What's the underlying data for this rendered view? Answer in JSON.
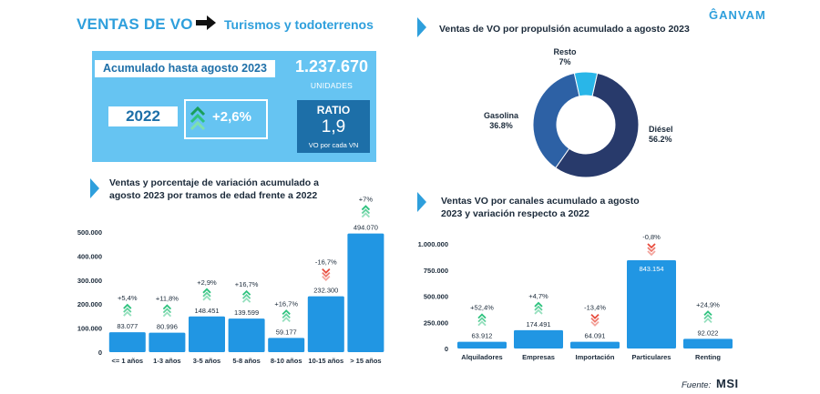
{
  "header": {
    "title": "VENTAS DE VO",
    "subtitle": "Turismos y todoterrenos",
    "logo": "ĜANVAM"
  },
  "kpis": {
    "accumulated_label": "Acumulado hasta agosto 2023",
    "units_value": "1.237.670",
    "units_label": "UNIDADES",
    "compare_year": "2022",
    "variation": "+2,6%",
    "ratio_title": "RATIO",
    "ratio_value": "1,9",
    "ratio_subtitle": "VO por cada VN"
  },
  "colors": {
    "accent": "#2e9fdc",
    "kpi_panel": "#66c4f2",
    "ratio_box": "#1d6fa8",
    "bar": "#2196e3",
    "donut_diesel": "#283a6b",
    "donut_gasolina": "#2d61a5",
    "donut_resto": "#29b6e8",
    "arrow_up": "#2ec27e",
    "arrow_down": "#e84c3d"
  },
  "chart_data": [
    {
      "type": "pie",
      "title": "Ventas de VO por propulsión acumulado a agosto 2023",
      "slices": [
        {
          "label": "Diésel",
          "value": 56.2,
          "display": "56.2%"
        },
        {
          "label": "Gasolina",
          "value": 36.8,
          "display": "36.8%"
        },
        {
          "label": "Resto",
          "value": 7,
          "display": "7%"
        }
      ]
    },
    {
      "type": "bar",
      "title": "Ventas y porcentaje de variación acumulado a agosto 2023 por tramos de edad frente a 2022",
      "categories": [
        "<= 1 años",
        "1-3 años",
        "3-5 años",
        "5-8 años",
        "8-10 años",
        "10-15 años",
        "> 15 años"
      ],
      "values": [
        83077,
        80996,
        148451,
        139599,
        59177,
        232300,
        494070
      ],
      "value_labels": [
        "83.077",
        "80.996",
        "148.451",
        "139.599",
        "59.177",
        "232.300",
        "494.070"
      ],
      "variation_labels": [
        "+5,4%",
        "+11,8%",
        "+2,9%",
        "+16,7%",
        "+16,7%",
        "-16,7%",
        "+7%"
      ],
      "variation_direction": [
        "up",
        "up",
        "up",
        "up",
        "up",
        "down",
        "up"
      ],
      "ylim": [
        0,
        500000
      ],
      "yticks": [
        0,
        100000,
        200000,
        300000,
        400000,
        500000
      ],
      "ytick_labels": [
        "0",
        "100.000",
        "200.000",
        "300.000",
        "400.000",
        "500.000"
      ]
    },
    {
      "type": "bar",
      "title": "Ventas VO por canales acumulado a agosto 2023 y variación respecto a 2022",
      "categories": [
        "Alquiladores",
        "Empresas",
        "Importación",
        "Particulares",
        "Renting"
      ],
      "values": [
        63912,
        174491,
        64091,
        843154,
        92022
      ],
      "value_labels": [
        "63.912",
        "174.491",
        "64.091",
        "843.154",
        "92.022"
      ],
      "variation_labels": [
        "+52,4%",
        "+4,7%",
        "-13,4%",
        "-0,8%",
        "+24,9%"
      ],
      "variation_direction": [
        "up",
        "up",
        "down",
        "down",
        "up"
      ],
      "ylim": [
        0,
        1000000
      ],
      "yticks": [
        0,
        250000,
        500000,
        750000,
        1000000
      ],
      "ytick_labels": [
        "0",
        "250.000",
        "500.000",
        "750.000",
        "1.000.000"
      ]
    }
  ],
  "footer": {
    "source_label": "Fuente:",
    "source_logo": "MSI"
  }
}
